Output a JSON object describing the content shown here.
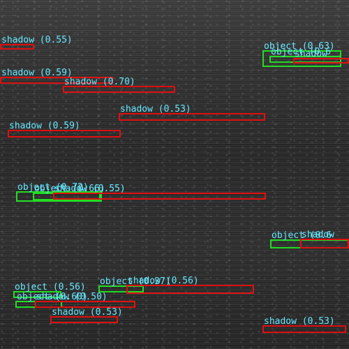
{
  "colors": {
    "shadow_box": "#e01010",
    "object_box": "#22dd22",
    "label_text": "#66e8ff"
  },
  "detections": [
    {
      "label": "shadow (0.55)",
      "cls": "shadow"
    },
    {
      "label": "shadow (0.59)",
      "cls": "shadow"
    },
    {
      "label": "shadow (0.70)",
      "cls": "shadow"
    },
    {
      "label": "shadow (0.53)",
      "cls": "shadow"
    },
    {
      "label": "shadow (0.59)",
      "cls": "shadow"
    },
    {
      "label": "object (0.63)",
      "cls": "object"
    },
    {
      "label": "object (0.6",
      "cls": "object"
    },
    {
      "label": "shadow",
      "cls": "shadow"
    },
    {
      "label": "object (0.72)",
      "cls": "object"
    },
    {
      "label": "object (0.66)",
      "cls": "object"
    },
    {
      "label": "shadow (0.55)",
      "cls": "shadow"
    },
    {
      "label": "object (0.6",
      "cls": "object"
    },
    {
      "label": "shadow",
      "cls": "shadow"
    },
    {
      "label": "object (0.56)",
      "cls": "object"
    },
    {
      "label": "object (0.60)",
      "cls": "object"
    },
    {
      "label": "shadow (0.50)",
      "cls": "shadow"
    },
    {
      "label": "object (0.37)",
      "cls": "object"
    },
    {
      "label": "shadow (0.56)",
      "cls": "shadow"
    },
    {
      "label": "shadow (0.53)",
      "cls": "shadow"
    }
  ]
}
